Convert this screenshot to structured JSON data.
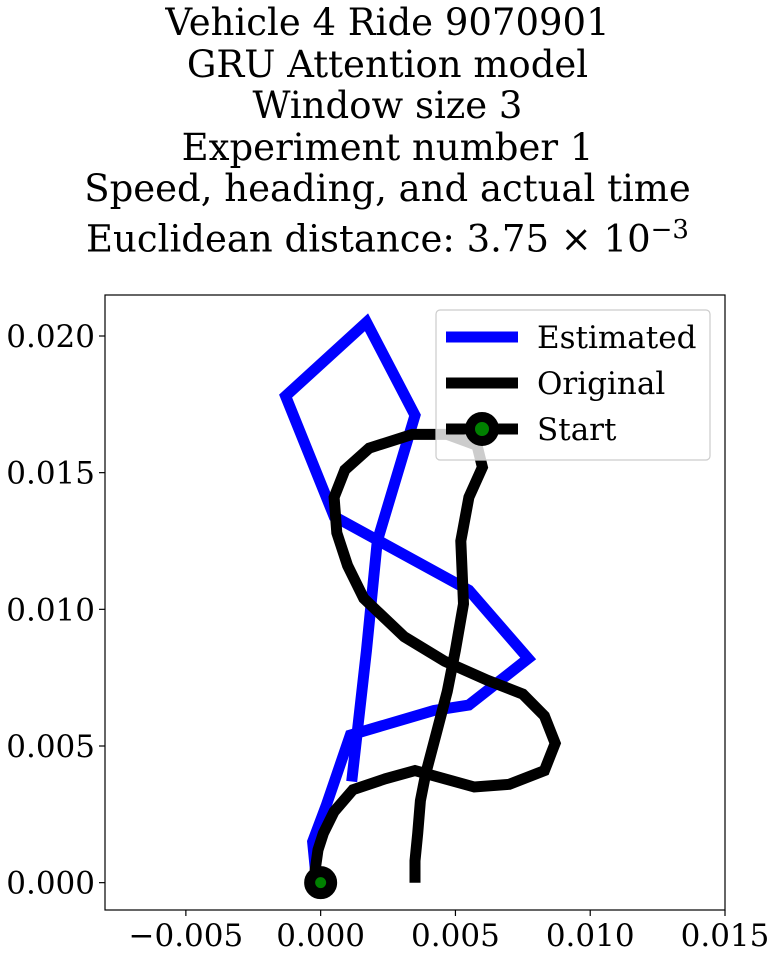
{
  "chart_data": {
    "type": "line",
    "title_lines": [
      "Vehicle 4 Ride 9070901",
      "GRU Attention model",
      "Window size 3",
      "Experiment number 1",
      "Speed, heading, and actual time",
      "Euclidean distance: 3.75 × 10"
    ],
    "title_exponent": "−3",
    "xlim": [
      -0.008,
      0.015
    ],
    "ylim": [
      -0.001,
      0.0215
    ],
    "x_ticks": [
      -0.005,
      0.0,
      0.005,
      0.01,
      0.015
    ],
    "x_tick_labels": [
      "−0.005",
      "0.000",
      "0.005",
      "0.010",
      "0.015"
    ],
    "y_ticks": [
      0.0,
      0.005,
      0.01,
      0.015,
      0.02
    ],
    "y_tick_labels": [
      "0.000",
      "0.005",
      "0.010",
      "0.015",
      "0.020"
    ],
    "grid": false,
    "legend_position": "top-right",
    "series": [
      {
        "name": "Estimated",
        "color": "#0000ff",
        "x": [
          0.00115,
          0.0017,
          0.0021,
          0.0035,
          0.0017,
          -0.0013,
          0.0005,
          0.0055,
          0.0077,
          0.0055,
          0.0042,
          0.0011,
          0.0002,
          -0.0003,
          -0.0002,
          0.0
        ],
        "y": [
          0.0037,
          0.0085,
          0.0125,
          0.0171,
          0.0205,
          0.0178,
          0.0134,
          0.0107,
          0.0082,
          0.0065,
          0.0063,
          0.0054,
          0.0028,
          0.0015,
          0.0005,
          0.0
        ]
      },
      {
        "name": "Original",
        "color": "#000000",
        "x": [
          0.0035,
          0.0035,
          0.0036,
          0.0037,
          0.0039,
          0.0043,
          0.0047,
          0.005,
          0.0053,
          0.0052,
          0.0055,
          0.006,
          0.0058,
          0.0047,
          0.0034,
          0.0018,
          0.0009,
          0.0005,
          0.0006,
          0.001,
          0.0016,
          0.0031,
          0.0046,
          0.0062,
          0.0075,
          0.0083,
          0.0087,
          0.0083,
          0.007,
          0.0057,
          0.0035,
          0.0024,
          0.0012,
          0.0005,
          0.0001,
          -0.0001,
          -0.0002,
          0.0
        ],
        "y": [
          0.0,
          0.0008,
          0.0018,
          0.003,
          0.004,
          0.0055,
          0.007,
          0.0085,
          0.0102,
          0.0125,
          0.0141,
          0.0152,
          0.016,
          0.0164,
          0.0164,
          0.0159,
          0.0151,
          0.0141,
          0.0128,
          0.0116,
          0.0104,
          0.009,
          0.0081,
          0.0074,
          0.0069,
          0.0061,
          0.0051,
          0.0041,
          0.0036,
          0.0035,
          0.0041,
          0.0038,
          0.0034,
          0.0026,
          0.0018,
          0.0012,
          0.0005,
          0.0
        ]
      }
    ],
    "start": {
      "name": "Start",
      "x": 0.0,
      "y": 0.0,
      "marker_edge": "#000000",
      "marker_face": "#008000"
    }
  }
}
